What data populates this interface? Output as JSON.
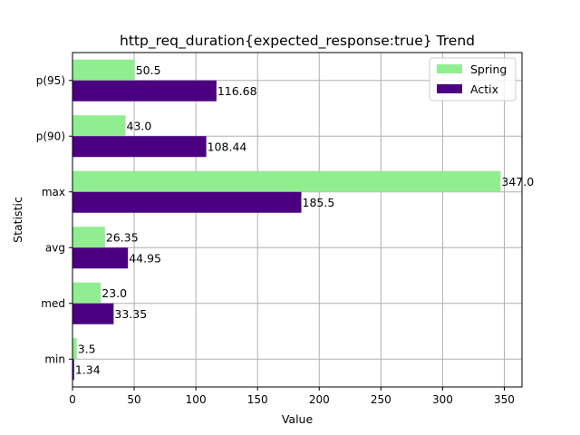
{
  "chart_data": {
    "type": "bar",
    "orientation": "horizontal",
    "title": "http_req_duration{expected_response:true} Trend",
    "xlabel": "Value",
    "ylabel": "Statistic",
    "categories": [
      "min",
      "med",
      "avg",
      "max",
      "p(90)",
      "p(95)"
    ],
    "series": [
      {
        "name": "Spring",
        "color": "#90ee90",
        "values": [
          3.5,
          23.0,
          26.35,
          347.0,
          43.0,
          50.5
        ]
      },
      {
        "name": "Actix",
        "color": "#4b0082",
        "values": [
          1.34,
          33.35,
          44.95,
          185.5,
          108.44,
          116.68
        ]
      }
    ],
    "value_labels": {
      "Spring": [
        "3.5",
        "23.0",
        "26.35",
        "347.0",
        "43.0",
        "50.5"
      ],
      "Actix": [
        "1.34",
        "33.35",
        "44.95",
        "185.5",
        "108.44",
        "116.68"
      ]
    },
    "xlim": [
      0,
      364.35
    ],
    "xticks": [
      0,
      50,
      100,
      150,
      200,
      250,
      300,
      350
    ],
    "grid": true,
    "legend_position": "top-right"
  }
}
